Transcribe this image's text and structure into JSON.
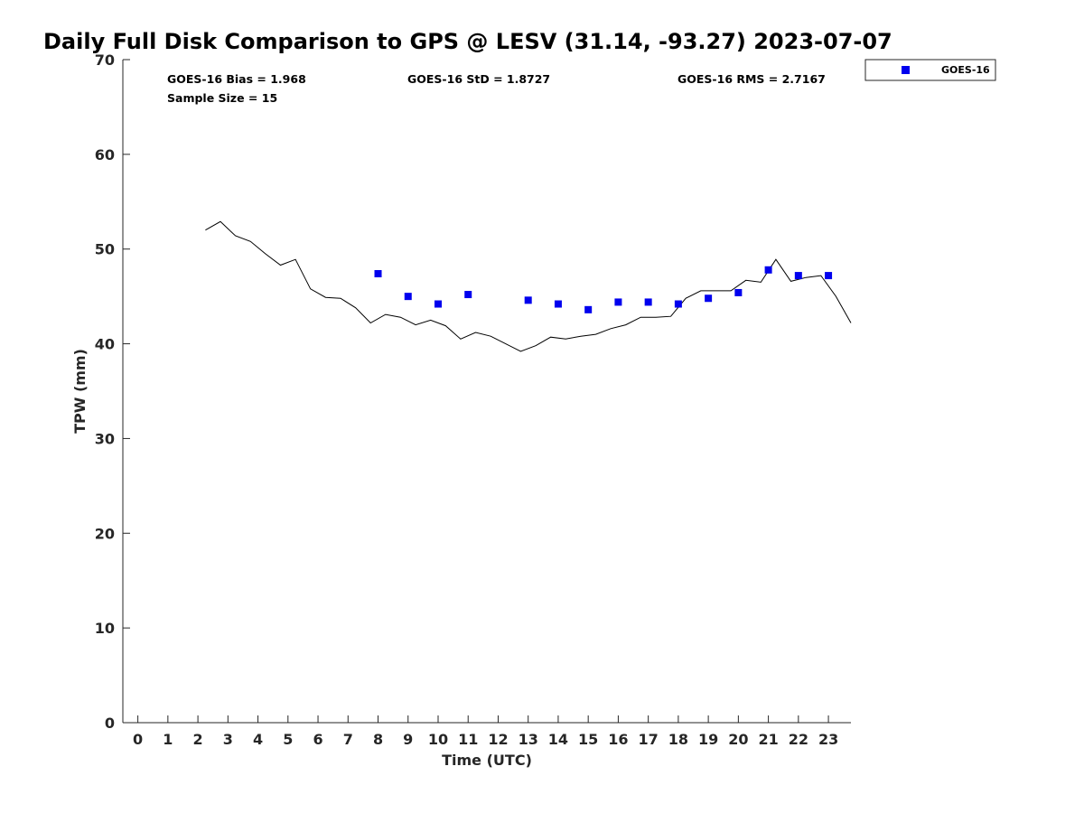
{
  "chart_data": {
    "type": "scatter",
    "title": "Daily Full Disk Comparison to GPS @ LESV (31.14, -93.27) 2023-07-07",
    "xlabel": "Time (UTC)",
    "ylabel": "TPW (mm)",
    "xlim": [
      -0.5,
      23.75
    ],
    "ylim": [
      0,
      70
    ],
    "x_ticks": [
      0,
      1,
      2,
      3,
      4,
      5,
      6,
      7,
      8,
      9,
      10,
      11,
      12,
      13,
      14,
      15,
      16,
      17,
      18,
      19,
      20,
      21,
      22,
      23
    ],
    "y_ticks": [
      0,
      10,
      20,
      30,
      40,
      50,
      60,
      70
    ],
    "grid": false,
    "legend_position": "top-right",
    "stats": {
      "bias": "GOES-16 Bias = 1.968",
      "std": "GOES-16 StD = 1.8727",
      "rms": "GOES-16 RMS = 2.7167",
      "sample": "Sample Size = 15"
    },
    "series": [
      {
        "name": "GOES-16",
        "kind": "marker",
        "color": "#0000ee",
        "x": [
          8,
          9,
          10,
          11,
          13,
          14,
          15,
          16,
          17,
          18,
          19,
          20,
          21,
          22,
          23
        ],
        "y": [
          47.4,
          45.0,
          44.2,
          45.2,
          44.6,
          44.2,
          43.6,
          44.4,
          44.4,
          44.2,
          44.8,
          45.4,
          47.8,
          47.2,
          47.2
        ]
      },
      {
        "kind": "line",
        "color": "#000000",
        "x": [
          2.25,
          2.75,
          3.25,
          3.75,
          4.25,
          4.75,
          5.25,
          5.75,
          6.25,
          6.75,
          7.25,
          7.75,
          8.25,
          8.75,
          9.25,
          9.75,
          10.25,
          10.75,
          11.25,
          11.75,
          12.25,
          12.75,
          13.25,
          13.75,
          14.25,
          14.75,
          15.25,
          15.75,
          16.25,
          16.75,
          17.25,
          17.75,
          18.25,
          18.75,
          19.25,
          19.75,
          20.25,
          20.75,
          21.25,
          21.75,
          22.25,
          22.75,
          23.25,
          23.75
        ],
        "y": [
          52.0,
          52.9,
          51.4,
          50.8,
          49.5,
          48.3,
          48.9,
          45.8,
          44.9,
          44.8,
          43.8,
          42.2,
          43.1,
          42.8,
          42.0,
          42.5,
          41.9,
          40.5,
          41.2,
          40.8,
          40.0,
          39.2,
          39.8,
          40.7,
          40.5,
          40.8,
          41.0,
          41.6,
          42.0,
          42.8,
          42.8,
          42.9,
          44.8,
          45.6,
          45.6,
          45.6,
          46.7,
          46.5,
          48.9,
          46.6,
          47.0,
          47.2,
          45.0,
          42.2
        ]
      }
    ]
  }
}
